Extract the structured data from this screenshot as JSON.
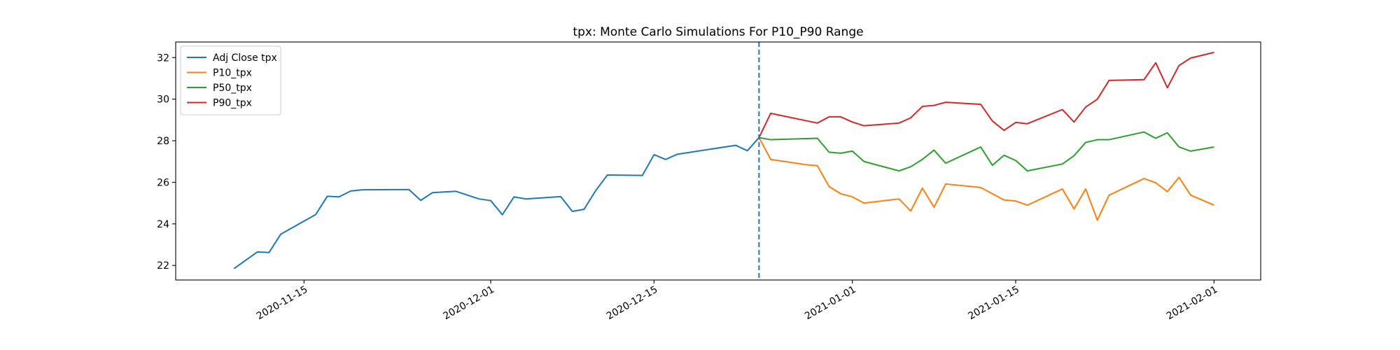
{
  "chart_data": {
    "type": "line",
    "title": "tpx: Monte Carlo Simulations For P10_P90 Range",
    "xlabel": "",
    "ylabel": "",
    "x_axis": {
      "type": "date",
      "range": [
        "2020-11-04",
        "2021-02-05"
      ],
      "ticks": [
        "2020-11-15",
        "2020-12-01",
        "2020-12-15",
        "2021-01-01",
        "2021-01-15",
        "2021-02-01"
      ]
    },
    "y_axis": {
      "range": [
        21.3,
        32.75
      ],
      "ticks": [
        22,
        24,
        26,
        28,
        30,
        32
      ]
    },
    "grid": false,
    "legend_position": "top-left",
    "vline": {
      "date": "2020-12-24",
      "style": "dashed",
      "color": "#1f77b4"
    },
    "series": [
      {
        "name": "Adj Close tpx",
        "color": "#1f77b4",
        "points": [
          [
            "2020-11-09",
            21.85
          ],
          [
            "2020-11-11",
            22.65
          ],
          [
            "2020-11-12",
            22.62
          ],
          [
            "2020-11-13",
            23.5
          ],
          [
            "2020-11-16",
            24.45
          ],
          [
            "2020-11-17",
            25.33
          ],
          [
            "2020-11-18",
            25.3
          ],
          [
            "2020-11-19",
            25.58
          ],
          [
            "2020-11-20",
            25.64
          ],
          [
            "2020-11-23",
            25.65
          ],
          [
            "2020-11-24",
            25.65
          ],
          [
            "2020-11-25",
            25.13
          ],
          [
            "2020-11-26",
            25.5
          ],
          [
            "2020-11-28",
            25.57
          ],
          [
            "2020-11-30",
            25.2
          ],
          [
            "2020-12-01",
            25.12
          ],
          [
            "2020-12-02",
            24.44
          ],
          [
            "2020-12-03",
            25.3
          ],
          [
            "2020-12-04",
            25.2
          ],
          [
            "2020-12-07",
            25.31
          ],
          [
            "2020-12-08",
            24.6
          ],
          [
            "2020-12-09",
            24.7
          ],
          [
            "2020-12-10",
            25.6
          ],
          [
            "2020-12-11",
            26.35
          ],
          [
            "2020-12-14",
            26.33
          ],
          [
            "2020-12-15",
            27.33
          ],
          [
            "2020-12-16",
            27.1
          ],
          [
            "2020-12-17",
            27.35
          ],
          [
            "2020-12-22",
            27.78
          ],
          [
            "2020-12-23",
            27.52
          ],
          [
            "2020-12-24",
            28.15
          ]
        ]
      },
      {
        "name": "P10_tpx",
        "color": "#ff7f0e",
        "points": [
          [
            "2020-12-24",
            28.15
          ],
          [
            "2020-12-25",
            27.1
          ],
          [
            "2020-12-28",
            26.85
          ],
          [
            "2020-12-29",
            26.8
          ],
          [
            "2020-12-30",
            25.8
          ],
          [
            "2020-12-31",
            25.45
          ],
          [
            "2021-01-01",
            25.3
          ],
          [
            "2021-01-02",
            25.0
          ],
          [
            "2021-01-05",
            25.2
          ],
          [
            "2021-01-06",
            24.62
          ],
          [
            "2021-01-07",
            25.72
          ],
          [
            "2021-01-08",
            24.8
          ],
          [
            "2021-01-09",
            25.92
          ],
          [
            "2021-01-12",
            25.75
          ],
          [
            "2021-01-14",
            25.15
          ],
          [
            "2021-01-15",
            25.1
          ],
          [
            "2021-01-16",
            24.9
          ],
          [
            "2021-01-19",
            25.68
          ],
          [
            "2021-01-20",
            24.72
          ],
          [
            "2021-01-21",
            25.68
          ],
          [
            "2021-01-22",
            24.18
          ],
          [
            "2021-01-23",
            25.38
          ],
          [
            "2021-01-26",
            26.18
          ],
          [
            "2021-01-27",
            25.98
          ],
          [
            "2021-01-28",
            25.55
          ],
          [
            "2021-01-29",
            26.24
          ],
          [
            "2021-01-30",
            25.38
          ],
          [
            "2021-02-01",
            24.9
          ]
        ]
      },
      {
        "name": "P50_tpx",
        "color": "#2ca02c",
        "points": [
          [
            "2020-12-24",
            28.15
          ],
          [
            "2020-12-25",
            28.05
          ],
          [
            "2020-12-29",
            28.12
          ],
          [
            "2020-12-30",
            27.45
          ],
          [
            "2020-12-31",
            27.4
          ],
          [
            "2021-01-01",
            27.5
          ],
          [
            "2021-01-02",
            27.0
          ],
          [
            "2021-01-05",
            26.55
          ],
          [
            "2021-01-06",
            26.75
          ],
          [
            "2021-01-07",
            27.1
          ],
          [
            "2021-01-08",
            27.55
          ],
          [
            "2021-01-09",
            26.92
          ],
          [
            "2021-01-12",
            27.7
          ],
          [
            "2021-01-13",
            26.82
          ],
          [
            "2021-01-14",
            27.3
          ],
          [
            "2021-01-15",
            27.05
          ],
          [
            "2021-01-16",
            26.55
          ],
          [
            "2021-01-19",
            26.88
          ],
          [
            "2021-01-20",
            27.28
          ],
          [
            "2021-01-21",
            27.92
          ],
          [
            "2021-01-22",
            28.05
          ],
          [
            "2021-01-23",
            28.05
          ],
          [
            "2021-01-26",
            28.42
          ],
          [
            "2021-01-27",
            28.12
          ],
          [
            "2021-01-28",
            28.38
          ],
          [
            "2021-01-29",
            27.7
          ],
          [
            "2021-01-30",
            27.5
          ],
          [
            "2021-02-01",
            27.7
          ]
        ]
      },
      {
        "name": "P90_tpx",
        "color": "#d62728",
        "points": [
          [
            "2020-12-24",
            28.15
          ],
          [
            "2020-12-25",
            29.32
          ],
          [
            "2020-12-29",
            28.85
          ],
          [
            "2020-12-30",
            29.15
          ],
          [
            "2020-12-31",
            29.15
          ],
          [
            "2021-01-01",
            28.9
          ],
          [
            "2021-01-02",
            28.72
          ],
          [
            "2021-01-05",
            28.85
          ],
          [
            "2021-01-06",
            29.1
          ],
          [
            "2021-01-07",
            29.65
          ],
          [
            "2021-01-08",
            29.7
          ],
          [
            "2021-01-09",
            29.85
          ],
          [
            "2021-01-12",
            29.75
          ],
          [
            "2021-01-13",
            28.95
          ],
          [
            "2021-01-14",
            28.5
          ],
          [
            "2021-01-15",
            28.88
          ],
          [
            "2021-01-16",
            28.82
          ],
          [
            "2021-01-19",
            29.5
          ],
          [
            "2021-01-20",
            28.9
          ],
          [
            "2021-01-21",
            29.62
          ],
          [
            "2021-01-22",
            30.0
          ],
          [
            "2021-01-23",
            30.9
          ],
          [
            "2021-01-26",
            30.94
          ],
          [
            "2021-01-27",
            31.75
          ],
          [
            "2021-01-28",
            30.55
          ],
          [
            "2021-01-29",
            31.62
          ],
          [
            "2021-01-30",
            31.98
          ],
          [
            "2021-02-01",
            32.25
          ]
        ]
      }
    ]
  }
}
